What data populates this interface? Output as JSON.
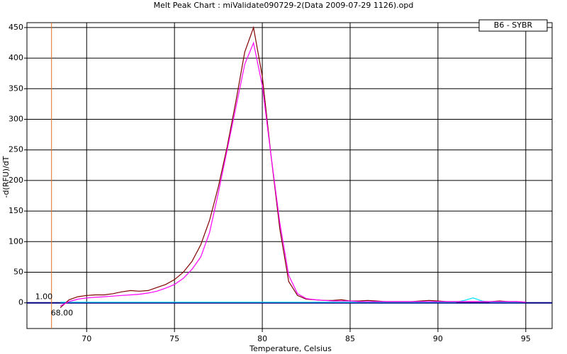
{
  "chart_data": {
    "type": "line",
    "title": "Melt Peak Chart : miValidate090729-2(Data 2009-07-29 1126).opd",
    "x_label": "Temperature, Celsius",
    "y_label": "-d(RFU)/dT",
    "legend_text": "B6 - SYBR",
    "cursor": {
      "x": 68,
      "y_text": "1.00",
      "x_text": "68.00",
      "color": "#e07020"
    },
    "xlim": [
      66.6,
      96.5
    ],
    "ylim": [
      -42,
      458
    ],
    "xticks": [
      70,
      75,
      80,
      85,
      90,
      95
    ],
    "yticks": [
      0,
      50,
      100,
      150,
      200,
      250,
      300,
      350,
      400,
      450
    ],
    "grid": true,
    "baseline_color": "#000080",
    "x": [
      68.5,
      69,
      69.5,
      70,
      70.5,
      71,
      71.5,
      72,
      72.5,
      73,
      73.5,
      74,
      74.5,
      75,
      75.5,
      76,
      76.5,
      77,
      77.5,
      78,
      78.5,
      79,
      79.5,
      80,
      80.5,
      81,
      81.5,
      82,
      82.5,
      83,
      83.5,
      84,
      84.5,
      85,
      85.5,
      86,
      86.5,
      87,
      87.5,
      88,
      88.5,
      89,
      89.5,
      90,
      90.5,
      91,
      91.5,
      92,
      92.5,
      93,
      93.5,
      94,
      94.5,
      95
    ],
    "series": [
      {
        "color": "#00e0ff",
        "values": [
          1,
          1,
          1,
          1,
          1,
          1,
          1,
          1,
          1,
          1,
          1,
          1,
          1,
          1,
          1,
          1,
          1,
          1,
          1,
          1,
          1,
          1,
          1,
          1,
          1,
          1,
          1,
          1,
          1,
          1,
          1,
          1,
          1,
          1,
          1,
          1,
          1,
          1,
          1,
          1,
          1,
          1,
          1,
          1,
          1,
          1,
          4,
          8,
          3,
          1,
          1,
          1,
          1,
          1
        ]
      },
      {
        "color": "#800000",
        "values": [
          -8,
          5,
          10,
          12,
          13,
          13,
          15,
          18,
          20,
          19,
          20,
          25,
          30,
          38,
          50,
          68,
          95,
          135,
          190,
          255,
          330,
          410,
          450,
          370,
          240,
          120,
          35,
          12,
          6,
          5,
          4,
          4,
          5,
          3,
          3,
          4,
          3,
          2,
          2,
          2,
          2,
          3,
          4,
          3,
          2,
          2,
          2,
          2,
          2,
          2,
          3,
          2,
          2,
          1
        ]
      },
      {
        "color": "#ff00ff",
        "values": [
          -5,
          2,
          6,
          8,
          9,
          10,
          11,
          12,
          13,
          14,
          16,
          19,
          24,
          30,
          40,
          55,
          75,
          115,
          180,
          250,
          320,
          390,
          425,
          355,
          240,
          130,
          45,
          15,
          7,
          5,
          4,
          3,
          3,
          3,
          2,
          2,
          2,
          2,
          2,
          2,
          2,
          2,
          2,
          2,
          2,
          2,
          2,
          2,
          2,
          2,
          2,
          2,
          2,
          1
        ]
      }
    ]
  }
}
